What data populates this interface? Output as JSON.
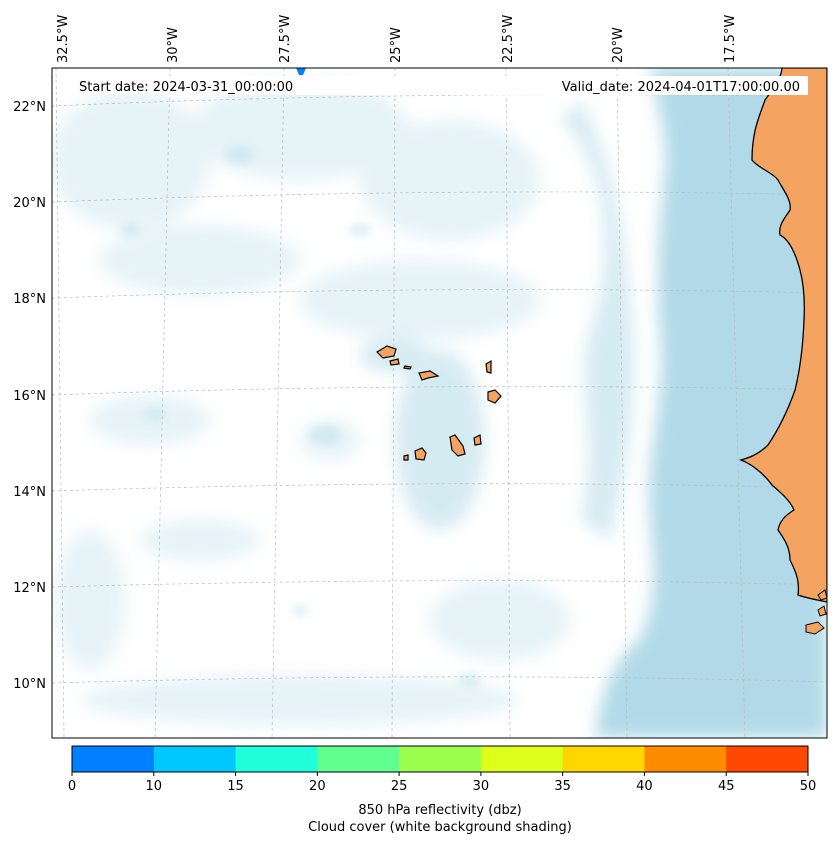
{
  "map": {
    "start_date_label": "Start date: 2024-03-31_00:00:00",
    "valid_date_label": "Valid_date: 2024-04-01T17:00:00.00",
    "lon_labels": [
      "32.5°W",
      "30°W",
      "27.5°W",
      "25°W",
      "22.5°W",
      "20°W",
      "17.5°W"
    ],
    "lat_labels": [
      "22°N",
      "20°N",
      "18°N",
      "16°N",
      "14°N",
      "12°N",
      "10°N"
    ],
    "colors": {
      "land": "#f4a460",
      "cloud": "#add8e6",
      "gridline": "#bbbbbb"
    }
  },
  "colorbar": {
    "ticks": [
      "0",
      "10",
      "15",
      "20",
      "25",
      "30",
      "35",
      "40",
      "45",
      "50"
    ],
    "colors": [
      "#0080ff",
      "#00c8ff",
      "#20ffdc",
      "#60ff90",
      "#9cff50",
      "#dcff1c",
      "#ffd700",
      "#ff8c00",
      "#ff4800"
    ],
    "label_line1": "850 hPa reflectivity (dbz)",
    "label_line2": "Cloud cover (white background shading)"
  }
}
